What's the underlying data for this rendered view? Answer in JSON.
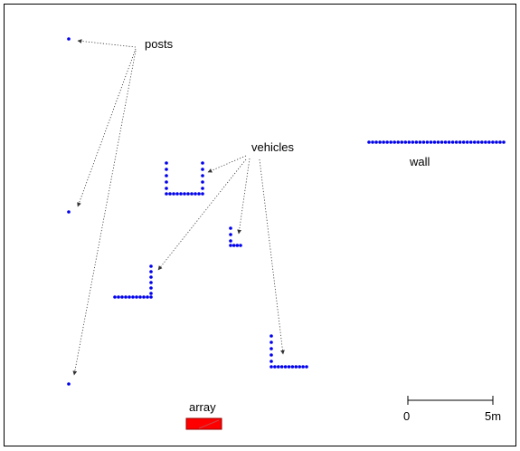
{
  "labels": {
    "posts": "posts",
    "vehicles": "vehicles",
    "wall": "wall",
    "array": "array"
  },
  "scale_bar": {
    "start_label": "0",
    "end_label": "5m"
  },
  "colors": {
    "dot": "#0000ee",
    "array_fill": "#ff0000",
    "array_stroke": "#990000",
    "frame": "#000000",
    "arrow": "#333333"
  }
}
